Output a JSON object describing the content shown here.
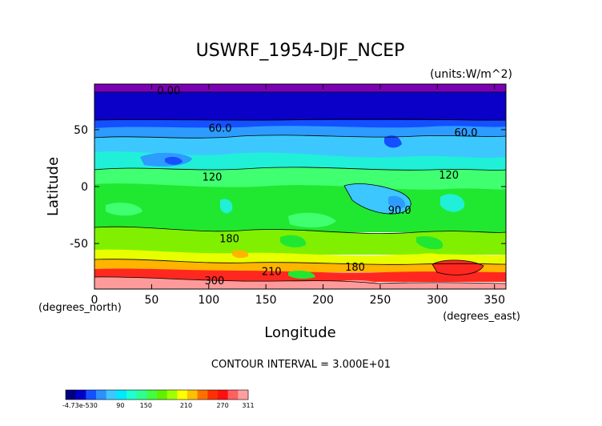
{
  "chart_data": {
    "type": "contour",
    "title": "USWRF_1954-DJF_NCEP",
    "units": "(units:W/m^2)",
    "xlabel": "Longitude",
    "ylabel": "Latitude",
    "x_unit_note": "(degrees_east)",
    "y_unit_note": "(degrees_north)",
    "xlim": [
      0,
      360
    ],
    "ylim": [
      -90,
      90
    ],
    "x_ticks": [
      "0",
      "50",
      "100",
      "150",
      "200",
      "250",
      "300",
      "350"
    ],
    "y_ticks": [
      "50",
      "0",
      "-50"
    ],
    "contour_interval_text": "CONTOUR INTERVAL = 3.000E+01",
    "contour_labels": [
      {
        "text": "0.00",
        "lon": 65,
        "lat": 84
      },
      {
        "text": "60.0",
        "lon": 110,
        "lat": 51
      },
      {
        "text": "60.0",
        "lon": 325,
        "lat": 47
      },
      {
        "text": "120",
        "lon": 103,
        "lat": 8
      },
      {
        "text": "120",
        "lon": 310,
        "lat": 10
      },
      {
        "text": "90.0",
        "lon": 267,
        "lat": -21
      },
      {
        "text": "180",
        "lon": 118,
        "lat": -46
      },
      {
        "text": "180",
        "lon": 228,
        "lat": -71
      },
      {
        "text": "210",
        "lon": 155,
        "lat": -75
      },
      {
        "text": "300",
        "lon": 105,
        "lat": -83
      }
    ],
    "colorbar": {
      "ticks": [
        "-4.73e-530",
        "90",
        "150",
        "210",
        "270",
        "311"
      ],
      "colors": [
        "#000080",
        "#0000c8",
        "#1450ff",
        "#2d90ff",
        "#3cc8ff",
        "#00e8ff",
        "#20ffd0",
        "#30ff90",
        "#40ff40",
        "#60f000",
        "#a0ff00",
        "#ffff00",
        "#ffc000",
        "#ff7000",
        "#ff3000",
        "#ff1010",
        "#ff6060",
        "#ffa0a0"
      ]
    }
  }
}
